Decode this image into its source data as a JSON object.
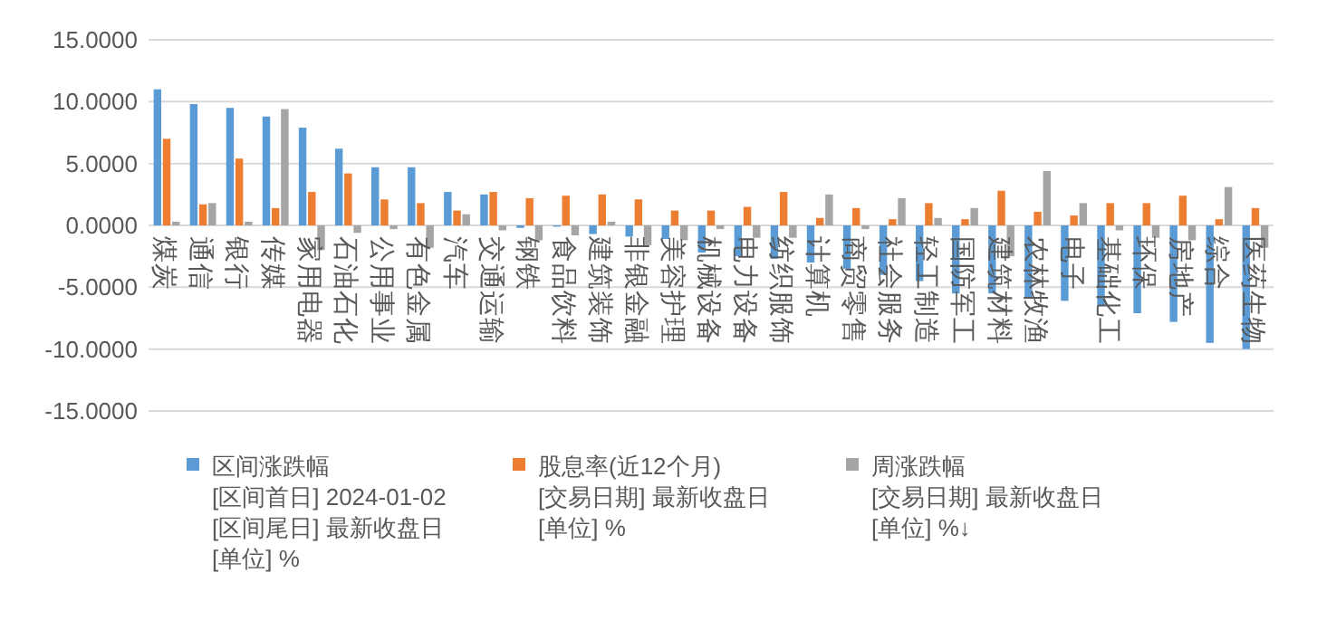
{
  "chart_data": {
    "type": "bar",
    "categories": [
      "煤炭",
      "通信",
      "银行",
      "传媒",
      "家用电器",
      "石油石化",
      "公用事业",
      "有色金属",
      "汽车",
      "交通运输",
      "钢铁",
      "食品饮料",
      "建筑装饰",
      "非银金融",
      "美容护理",
      "机械设备",
      "电力设备",
      "纺织服饰",
      "计算机",
      "商贸零售",
      "社会服务",
      "轻工制造",
      "国防军工",
      "建筑材料",
      "农林牧渔",
      "电子",
      "基础化工",
      "环保",
      "房地产",
      "综合",
      "医药生物"
    ],
    "series": [
      {
        "name": "区间涨跌幅\n[区间首日] 2024-01-02\n[区间尾日] 最新收盘日\n[单位] %",
        "color": "#5b9bd5",
        "values": [
          11.0,
          9.8,
          9.5,
          8.8,
          7.9,
          6.2,
          4.7,
          4.7,
          2.7,
          2.5,
          -0.2,
          -0.1,
          -0.7,
          -0.9,
          -1.1,
          -2.2,
          -2.5,
          -2.7,
          -3.0,
          -3.5,
          -4.0,
          -4.5,
          -5.5,
          -5.5,
          -5.8,
          -6.1,
          -6.5,
          -7.1,
          -7.8,
          -9.5,
          -10.0
        ]
      },
      {
        "name": "股息率(近12个月)\n[交易日期] 最新收盘日\n[单位] %",
        "color": "#ed7d31",
        "values": [
          7.0,
          1.7,
          5.4,
          1.4,
          2.7,
          4.2,
          2.1,
          1.8,
          1.2,
          2.7,
          2.2,
          2.4,
          2.5,
          2.1,
          1.2,
          1.2,
          1.5,
          2.7,
          0.6,
          1.4,
          0.5,
          1.8,
          0.5,
          2.8,
          1.1,
          0.8,
          1.8,
          1.8,
          2.4,
          0.5,
          1.4
        ]
      },
      {
        "name": "周涨跌幅\n[交易日期] 最新收盘日\n[单位] %↓",
        "color": "#a5a5a5",
        "values": [
          0.3,
          1.8,
          0.3,
          9.4,
          -2.0,
          -0.6,
          -0.3,
          -1.8,
          0.9,
          -0.4,
          -1.2,
          -0.8,
          0.3,
          -1.6,
          -1.2,
          -0.3,
          -1.0,
          -1.0,
          2.5,
          -0.3,
          2.2,
          0.6,
          1.4,
          -2.5,
          4.4,
          1.8,
          -0.4,
          -1.0,
          -1.2,
          3.1,
          -1.8
        ]
      }
    ],
    "ylim": [
      -15,
      15
    ],
    "yticks": [
      {
        "value": 15,
        "label": "15.0000"
      },
      {
        "value": 10,
        "label": "10.0000"
      },
      {
        "value": 5,
        "label": "5.0000"
      },
      {
        "value": 0,
        "label": "0.0000"
      },
      {
        "value": -5,
        "label": "-5.0000"
      },
      {
        "value": -10,
        "label": "-10.0000"
      },
      {
        "value": -15,
        "label": "-15.0000"
      }
    ],
    "grid": "y",
    "legend": "bottom"
  }
}
